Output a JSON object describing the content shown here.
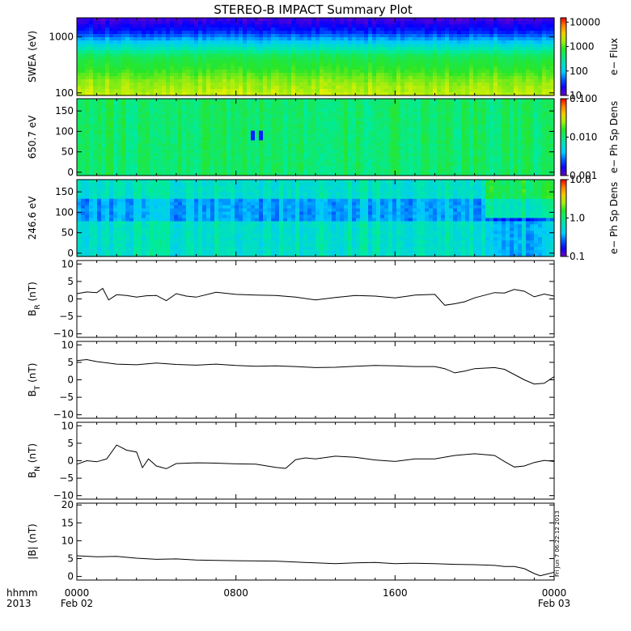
{
  "title": "STEREO-B IMPACT Summary Plot",
  "timestamp": "Fri Jun  7 06:22:12 2013",
  "colors": {
    "line": "#000000",
    "frame": "#000000"
  },
  "time_axis": {
    "label_line1": "hhmm",
    "label_line2": "2013",
    "ticks": [
      {
        "hour": 0,
        "line1": "0000",
        "line2": "Feb 02"
      },
      {
        "hour": 8,
        "line1": "0800",
        "line2": ""
      },
      {
        "hour": 16,
        "line1": "1600",
        "line2": ""
      },
      {
        "hour": 24,
        "line1": "0000",
        "line2": "Feb 03"
      }
    ],
    "minor_step_hours": 1
  },
  "chart_data": [
    {
      "type": "heatmap",
      "ylabel": "SWEA (eV)",
      "yscale": "log",
      "ylim": [
        90,
        2200
      ],
      "y_ticks": [
        100,
        1000
      ],
      "y_ticklabels": [
        "100",
        "1000"
      ],
      "colorbar": {
        "label": "e− Flux",
        "scale": "log",
        "range": [
          10,
          15000
        ],
        "ticks": [
          10,
          100,
          1000,
          10000
        ],
        "ticklabels": [
          "10",
          "100",
          "1000",
          "10000"
        ],
        "colormap": "rainbow"
      },
      "description_levels": [
        {
          "energy_eV": 2000,
          "level": 0.05
        },
        {
          "energy_eV": 1500,
          "level": 0.15
        },
        {
          "energy_eV": 1000,
          "level": 0.35
        },
        {
          "energy_eV": 600,
          "level": 0.55
        },
        {
          "energy_eV": 300,
          "level": 0.6
        },
        {
          "energy_eV": 150,
          "level": 0.68
        },
        {
          "energy_eV": 100,
          "level": 0.72
        }
      ]
    },
    {
      "type": "heatmap",
      "ylabel": "650.7 eV",
      "ylim": [
        -8,
        180
      ],
      "y_ticks": [
        0,
        50,
        100,
        150
      ],
      "y_ticklabels": [
        "0",
        "50",
        "100",
        "150"
      ],
      "colorbar": {
        "label": "e− Ph Sp Dens",
        "scale": "log",
        "range": [
          0.001,
          0.1
        ],
        "ticks": [
          0.001,
          0.01,
          0.1
        ],
        "ticklabels": [
          "0.001",
          "0.010",
          "0.100"
        ],
        "colormap": "rainbow"
      },
      "typical_level": 0.52
    },
    {
      "type": "heatmap",
      "ylabel": "246.6 eV",
      "ylim": [
        -8,
        180
      ],
      "y_ticks": [
        0,
        50,
        100,
        150
      ],
      "y_ticklabels": [
        "0",
        "50",
        "100",
        "150"
      ],
      "colorbar": {
        "label": "e− Ph Sp Dens",
        "scale": "log",
        "range": [
          0.1,
          10
        ],
        "ticks": [
          0.1,
          1,
          10
        ],
        "ticklabels": [
          "0.1",
          "1.0",
          "10.0"
        ],
        "colormap": "rainbow"
      },
      "typical_level": 0.4
    },
    {
      "type": "line",
      "ylabel": "B",
      "ylabel_sub": "R",
      "ylabel_unit": " (nT)",
      "ylim": [
        -11,
        11
      ],
      "y_ticks": [
        -10,
        -5,
        0,
        5,
        10
      ],
      "y_ticklabels": [
        "−10",
        "−5",
        "0",
        "5",
        "10"
      ],
      "x": [
        0,
        0.5,
        1,
        1.3,
        1.6,
        2,
        2.5,
        3,
        3.5,
        4,
        4.5,
        5,
        5.5,
        6,
        7,
        8,
        9,
        10,
        11,
        12,
        13,
        14,
        15,
        16,
        17,
        18,
        18.5,
        19,
        19.5,
        20,
        21,
        21.5,
        22,
        22.5,
        23,
        23.5,
        24
      ],
      "y": [
        1.5,
        2.0,
        1.8,
        3.0,
        -0.3,
        1.2,
        1.0,
        0.5,
        0.9,
        1.0,
        -0.5,
        1.5,
        0.8,
        0.5,
        1.9,
        1.3,
        1.1,
        1.0,
        0.5,
        -0.3,
        0.4,
        1.0,
        0.8,
        0.3,
        1.1,
        1.3,
        -1.8,
        -1.4,
        -0.8,
        0.3,
        1.8,
        1.7,
        2.7,
        2.2,
        0.6,
        1.4,
        0.8
      ]
    },
    {
      "type": "line",
      "ylabel": "B",
      "ylabel_sub": "T",
      "ylabel_unit": " (nT)",
      "ylim": [
        -11,
        11
      ],
      "y_ticks": [
        -10,
        -5,
        0,
        5,
        10
      ],
      "y_ticklabels": [
        "−10",
        "−5",
        "0",
        "5",
        "10"
      ],
      "x": [
        0,
        0.5,
        1,
        2,
        3,
        4,
        5,
        6,
        7,
        8,
        9,
        10,
        11,
        12,
        13,
        14,
        15,
        16,
        17,
        18,
        18.5,
        19,
        19.5,
        20,
        21,
        21.5,
        22,
        22.5,
        23,
        23.5,
        24
      ],
      "y": [
        5.5,
        5.8,
        5.2,
        4.5,
        4.3,
        4.8,
        4.4,
        4.2,
        4.5,
        4.1,
        3.9,
        4.0,
        3.8,
        3.5,
        3.6,
        3.9,
        4.1,
        4.0,
        3.8,
        3.8,
        3.2,
        2.0,
        2.5,
        3.2,
        3.5,
        3.0,
        1.5,
        0.0,
        -1.2,
        -1.0,
        0.9
      ]
    },
    {
      "type": "line",
      "ylabel": "B",
      "ylabel_sub": "N",
      "ylabel_unit": " (nT)",
      "ylim": [
        -11,
        11
      ],
      "y_ticks": [
        -10,
        -5,
        0,
        5,
        10
      ],
      "y_ticklabels": [
        "−10",
        "−5",
        "0",
        "5",
        "10"
      ],
      "x": [
        0,
        0.5,
        1,
        1.5,
        2,
        2.5,
        3,
        3.3,
        3.6,
        4,
        4.5,
        5,
        6,
        7,
        8,
        9,
        10,
        10.5,
        11,
        11.5,
        12,
        13,
        14,
        15,
        16,
        17,
        18,
        19,
        20,
        21,
        21.5,
        22,
        22.5,
        23,
        23.5,
        24
      ],
      "y": [
        -1.0,
        0.0,
        -0.3,
        0.5,
        4.5,
        3.0,
        2.5,
        -2.0,
        0.5,
        -1.5,
        -2.3,
        -0.8,
        -0.6,
        -0.7,
        -0.9,
        -1.0,
        -1.9,
        -2.2,
        0.3,
        0.8,
        0.5,
        1.3,
        1.0,
        0.2,
        -0.2,
        0.5,
        0.5,
        1.5,
        2.0,
        1.5,
        -0.2,
        -1.8,
        -1.5,
        -0.5,
        0.1,
        -0.2
      ]
    },
    {
      "type": "line",
      "ylabel": "|B| (nT)",
      "ylim": [
        -1,
        20.5
      ],
      "y_ticks": [
        0,
        5,
        10,
        15,
        20
      ],
      "y_ticklabels": [
        "0",
        "5",
        "10",
        "15",
        "20"
      ],
      "x": [
        0,
        1,
        2,
        3,
        4,
        5,
        6,
        8,
        10,
        12,
        13,
        14,
        15,
        16,
        17,
        18,
        19,
        20,
        21,
        21.5,
        22,
        22.5,
        23,
        23.3,
        23.6,
        24
      ],
      "y": [
        5.8,
        5.5,
        5.6,
        5.1,
        4.8,
        4.9,
        4.6,
        4.4,
        4.3,
        3.8,
        3.6,
        3.8,
        3.9,
        3.6,
        3.7,
        3.6,
        3.4,
        3.3,
        3.1,
        2.8,
        2.8,
        2.2,
        0.8,
        0.2,
        0.6,
        1.2
      ]
    }
  ]
}
